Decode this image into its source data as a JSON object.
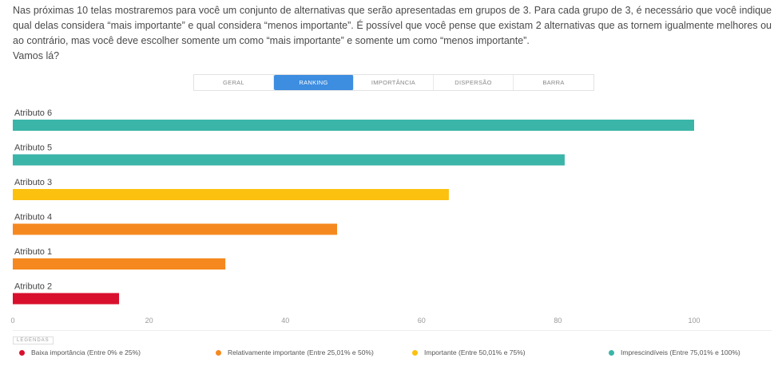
{
  "intro": {
    "paragraph": "Nas próximas 10 telas mostraremos para você um conjunto de alternativas que serão apresentadas em grupos de 3. Para cada grupo de 3, é necessário que você indique qual delas considera “mais importante” e qual considera “menos importante”. É possível que você pense que existam 2 alternativas que as tornem igualmente melhores ou ao contrário, mas você deve escolher somente um como “mais importante” e somente um como “menos importante”.",
    "call_to_action": "Vamos lá?"
  },
  "tabs": [
    {
      "label": "GERAL",
      "active": false
    },
    {
      "label": "RANKING",
      "active": true
    },
    {
      "label": "IMPORTÂNCIA",
      "active": false
    },
    {
      "label": "DISPERSÃO",
      "active": false
    },
    {
      "label": "BARRA",
      "active": false
    }
  ],
  "chart_data": {
    "type": "bar",
    "orientation": "horizontal",
    "categories": [
      "Atributo 6",
      "Atributo 5",
      "Atributo 3",
      "Atributo 4",
      "Atributo 1",
      "Atributo 2"
    ],
    "values": [
      100,
      81,
      64,
      47.6,
      31.2,
      15.6
    ],
    "bar_colors": [
      "#3bb5a8",
      "#3bb5a8",
      "#fcc10f",
      "#f5891f",
      "#f5891f",
      "#d8102e"
    ],
    "xlim": [
      0,
      100
    ],
    "xticks": [
      0,
      20,
      40,
      60,
      80,
      100
    ],
    "grid": false
  },
  "legend": {
    "title": "LEGENDAS",
    "items": [
      {
        "label": "Baixa importância (Entre 0% e 25%)",
        "color": "#d8102e"
      },
      {
        "label": "Relativamente importante (Entre 25,01% e 50%)",
        "color": "#f5891f"
      },
      {
        "label": "Importante (Entre 50,01% e 75%)",
        "color": "#fcc10f"
      },
      {
        "label": "Imprescindíveis (Entre 75,01% e 100%)",
        "color": "#3bb5a8"
      }
    ]
  }
}
